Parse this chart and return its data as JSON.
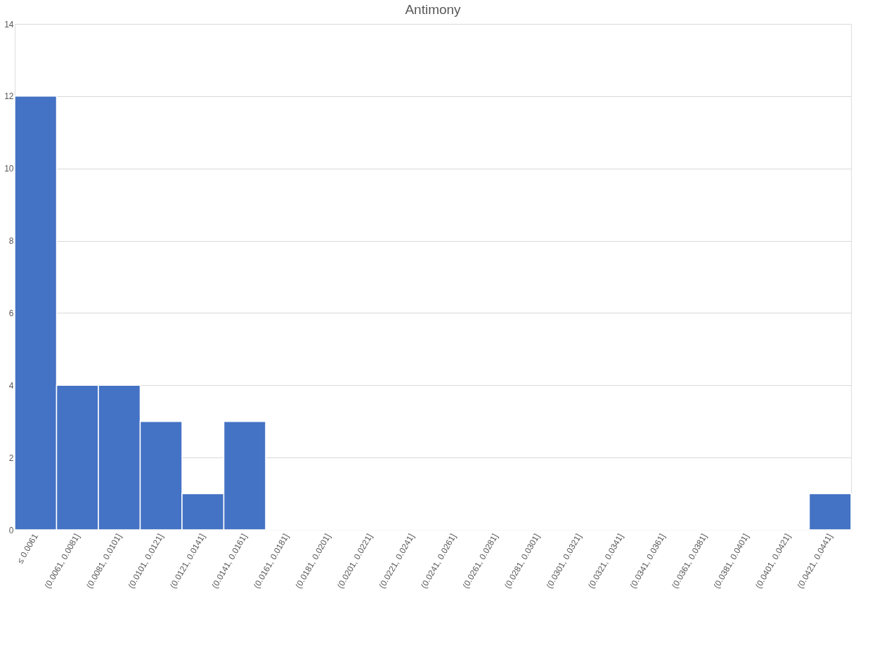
{
  "chart_data": {
    "type": "bar",
    "title": "Antimony",
    "categories": [
      "≤ 0.0061",
      "(0.0061, 0.0081]",
      "(0.0081, 0.0101]",
      "(0.0101, 0.0121]",
      "(0.0121, 0.0141]",
      "(0.0141, 0.0161]",
      "(0.0161, 0.0181]",
      "(0.0181, 0.0201]",
      "(0.0201, 0.0221]",
      "(0.0221, 0.0241]",
      "(0.0241, 0.0261]",
      "(0.0261, 0.0281]",
      "(0.0281, 0.0301]",
      "(0.0301, 0.0321]",
      "(0.0321, 0.0341]",
      "(0.0341, 0.0361]",
      "(0.0361, 0.0381]",
      "(0.0381, 0.0401]",
      "(0.0401, 0.0421]",
      "(0.0421, 0.0441]"
    ],
    "values": [
      12,
      4,
      4,
      3,
      1,
      3,
      0,
      0,
      0,
      0,
      0,
      0,
      0,
      0,
      0,
      0,
      0,
      0,
      0,
      1
    ],
    "color": "#4472c4",
    "ylim": [
      0,
      14
    ],
    "yticks": [
      0,
      2,
      4,
      6,
      8,
      10,
      12,
      14
    ],
    "grid": "y"
  }
}
